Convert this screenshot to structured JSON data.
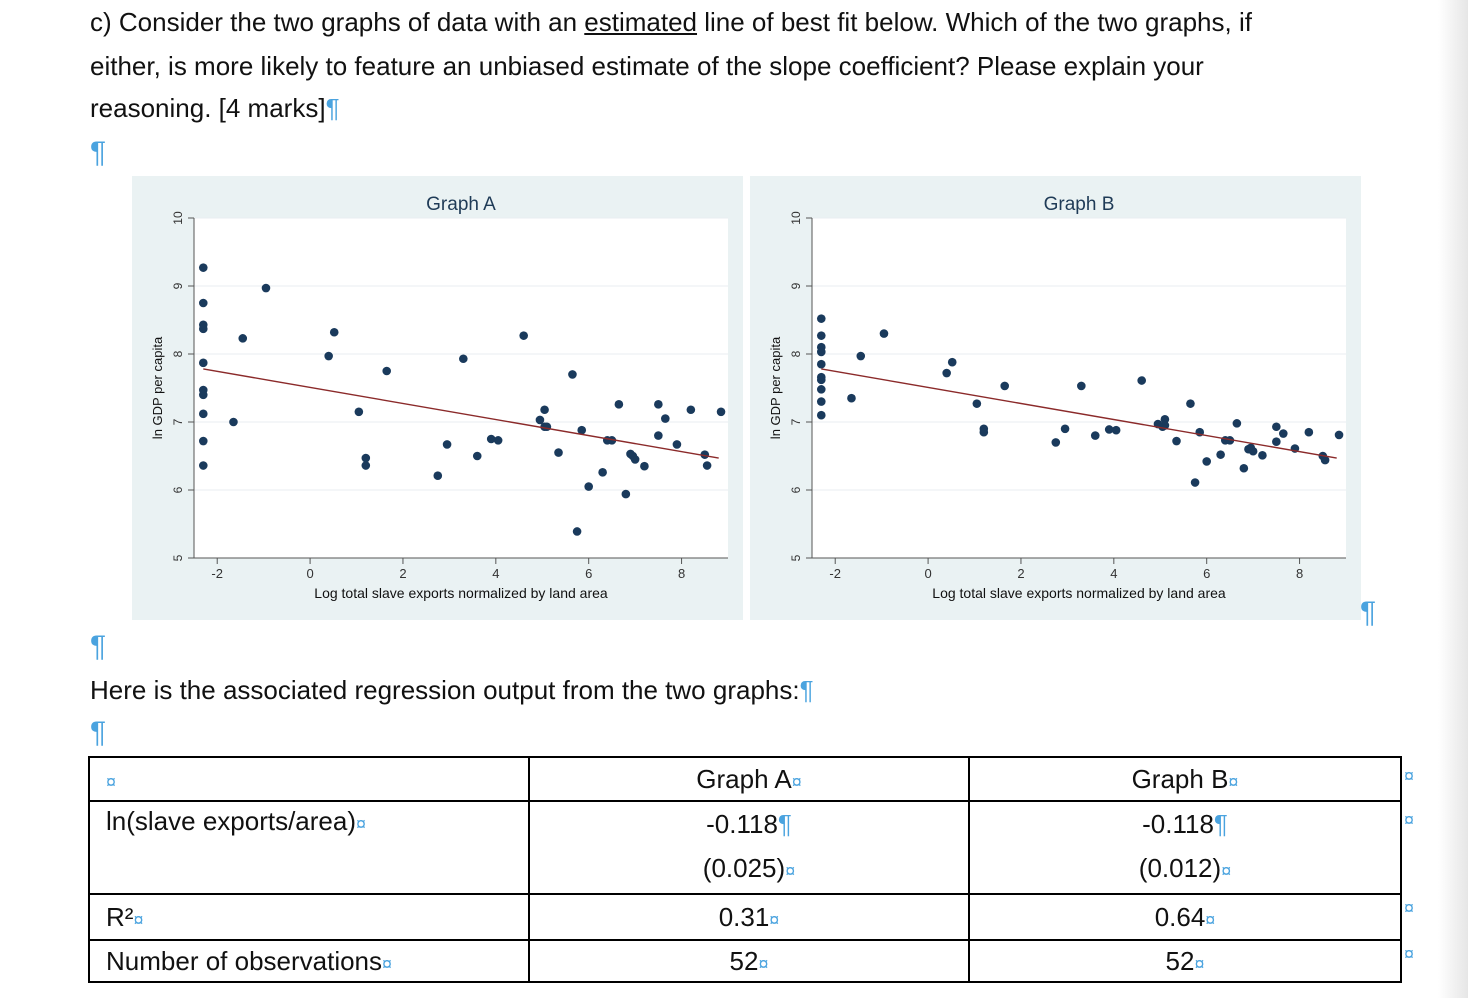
{
  "question": {
    "before": "c) Consider the two graphs of data with an ",
    "underlined": "estimated",
    "after_line1": " line of best fit below. Which of the two graphs, if",
    "line2": "either, is more likely to feature an unbiased estimate of the slope coefficient? Please explain your",
    "line3": "reasoning. [4 marks]"
  },
  "pilcrow": "¶",
  "cell_marker": "¤",
  "intro": "Here is the associated regression output from the two graphs:",
  "chart_data": [
    {
      "type": "scatter",
      "title": "Graph A",
      "xlabel": "Log total slave exports normalized by land area",
      "ylabel": "ln GDP per capita",
      "xlim": [
        -2.5,
        9
      ],
      "ylim": [
        5,
        10
      ],
      "xticks": [
        "-2",
        "0",
        "2",
        "4",
        "6",
        "8"
      ],
      "yticks": [
        "5",
        "6",
        "7",
        "8",
        "9",
        "10"
      ],
      "grid": true,
      "fit_line": {
        "x": [
          -2.3,
          8.8
        ],
        "y": [
          7.78,
          6.47
        ],
        "color": "#8b2a2a"
      },
      "points": [
        [
          -2.3,
          9.27
        ],
        [
          -2.3,
          8.75
        ],
        [
          -2.3,
          8.43
        ],
        [
          -2.3,
          8.37
        ],
        [
          -2.3,
          7.87
        ],
        [
          -2.3,
          7.47
        ],
        [
          -2.3,
          7.4
        ],
        [
          -2.3,
          7.12
        ],
        [
          -2.3,
          6.72
        ],
        [
          -2.3,
          6.36
        ],
        [
          -1.65,
          7.0
        ],
        [
          -1.45,
          8.23
        ],
        [
          -0.95,
          8.97
        ],
        [
          0.4,
          7.97
        ],
        [
          0.52,
          8.32
        ],
        [
          1.05,
          7.15
        ],
        [
          1.2,
          6.47
        ],
        [
          1.2,
          6.36
        ],
        [
          1.65,
          7.75
        ],
        [
          2.75,
          6.21
        ],
        [
          2.95,
          6.67
        ],
        [
          3.3,
          7.93
        ],
        [
          3.6,
          6.5
        ],
        [
          3.9,
          6.75
        ],
        [
          4.05,
          6.73
        ],
        [
          4.6,
          8.27
        ],
        [
          4.95,
          7.03
        ],
        [
          5.05,
          6.93
        ],
        [
          5.05,
          7.18
        ],
        [
          5.1,
          6.93
        ],
        [
          5.35,
          6.55
        ],
        [
          5.65,
          7.7
        ],
        [
          5.75,
          5.39
        ],
        [
          5.85,
          6.88
        ],
        [
          6.0,
          6.05
        ],
        [
          6.3,
          6.26
        ],
        [
          6.4,
          6.73
        ],
        [
          6.5,
          6.73
        ],
        [
          6.65,
          7.26
        ],
        [
          6.8,
          5.94
        ],
        [
          6.9,
          6.53
        ],
        [
          7.0,
          6.45
        ],
        [
          7.2,
          6.35
        ],
        [
          7.5,
          6.8
        ],
        [
          7.5,
          7.26
        ],
        [
          7.65,
          7.05
        ],
        [
          7.9,
          6.67
        ],
        [
          8.2,
          7.18
        ],
        [
          8.5,
          6.52
        ],
        [
          8.55,
          6.36
        ],
        [
          8.85,
          7.15
        ],
        [
          6.95,
          6.5
        ]
      ]
    },
    {
      "type": "scatter",
      "title": "Graph B",
      "xlabel": "Log total slave exports normalized by land area",
      "ylabel": "ln GDP per capita",
      "xlim": [
        -2.5,
        9
      ],
      "ylim": [
        5,
        10
      ],
      "xticks": [
        "-2",
        "0",
        "2",
        "4",
        "6",
        "8"
      ],
      "yticks": [
        "5",
        "6",
        "7",
        "8",
        "9",
        "10"
      ],
      "grid": true,
      "fit_line": {
        "x": [
          -2.3,
          8.8
        ],
        "y": [
          7.78,
          6.47
        ],
        "color": "#8b2a2a"
      },
      "points": [
        [
          -2.3,
          8.52
        ],
        [
          -2.3,
          8.27
        ],
        [
          -2.3,
          8.1
        ],
        [
          -2.3,
          7.85
        ],
        [
          -2.3,
          7.62
        ],
        [
          -2.3,
          7.48
        ],
        [
          -2.3,
          7.3
        ],
        [
          -2.3,
          7.1
        ],
        [
          -2.3,
          7.66
        ],
        [
          -2.3,
          8.03
        ],
        [
          -1.65,
          7.35
        ],
        [
          -1.45,
          7.97
        ],
        [
          -0.95,
          8.3
        ],
        [
          0.4,
          7.72
        ],
        [
          0.52,
          7.88
        ],
        [
          1.05,
          7.27
        ],
        [
          1.2,
          6.9
        ],
        [
          1.2,
          6.85
        ],
        [
          1.65,
          7.53
        ],
        [
          2.75,
          6.7
        ],
        [
          2.95,
          6.9
        ],
        [
          3.3,
          7.53
        ],
        [
          3.6,
          6.8
        ],
        [
          3.9,
          6.89
        ],
        [
          4.05,
          6.88
        ],
        [
          4.6,
          7.61
        ],
        [
          4.95,
          6.97
        ],
        [
          5.05,
          6.93
        ],
        [
          5.1,
          7.04
        ],
        [
          5.1,
          6.95
        ],
        [
          5.35,
          6.72
        ],
        [
          5.65,
          7.27
        ],
        [
          5.75,
          6.11
        ],
        [
          5.85,
          6.85
        ],
        [
          6.0,
          6.42
        ],
        [
          6.3,
          6.52
        ],
        [
          6.4,
          6.73
        ],
        [
          6.5,
          6.73
        ],
        [
          6.65,
          6.98
        ],
        [
          6.8,
          6.32
        ],
        [
          6.9,
          6.6
        ],
        [
          7.0,
          6.57
        ],
        [
          7.2,
          6.51
        ],
        [
          7.5,
          6.71
        ],
        [
          7.5,
          6.93
        ],
        [
          7.65,
          6.83
        ],
        [
          7.9,
          6.61
        ],
        [
          8.2,
          6.85
        ],
        [
          8.5,
          6.5
        ],
        [
          8.55,
          6.44
        ],
        [
          8.85,
          6.81
        ],
        [
          6.95,
          6.62
        ]
      ]
    }
  ],
  "table": {
    "headers": [
      "",
      "Graph A",
      "Graph B"
    ],
    "rows": [
      {
        "label": "ln(slave exports/area)",
        "a_coef": "-0.118",
        "a_se": "(0.025)",
        "b_coef": "-0.118",
        "b_se": "(0.012)"
      },
      {
        "label": "R²",
        "a": "0.31",
        "b": "0.64"
      },
      {
        "label": "Number of observations",
        "a": "52",
        "b": "52"
      }
    ]
  },
  "colors": {
    "panel_bg": "#eaf2f3",
    "plot_bg": "#ffffff",
    "marker": "#1a3a5c",
    "fit_line": "#8b2a2a",
    "pilcrow": "#4aa3df"
  }
}
